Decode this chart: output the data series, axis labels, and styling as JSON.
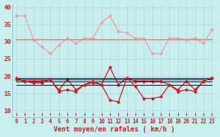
{
  "title": "",
  "xlabel": "Vent moyen/en rafales ( km/h )",
  "bg_color": "#c8eef0",
  "grid_color": "#b0dde0",
  "ylim": [
    8,
    41
  ],
  "xlim": [
    -0.5,
    23.5
  ],
  "yticks": [
    10,
    15,
    20,
    25,
    30,
    35,
    40
  ],
  "xticks": [
    0,
    1,
    2,
    3,
    4,
    5,
    6,
    7,
    8,
    9,
    10,
    11,
    12,
    13,
    14,
    15,
    16,
    17,
    18,
    19,
    20,
    21,
    22,
    23
  ],
  "series": [
    {
      "y": [
        37.5,
        37.5,
        30.5,
        28.5,
        26.5,
        29.0,
        31.0,
        29.5,
        31.0,
        31.0,
        35.5,
        37.5,
        33.0,
        32.5,
        31.0,
        31.0,
        26.5,
        26.5,
        31.0,
        31.0,
        30.5,
        31.0,
        29.5,
        33.5
      ],
      "color": "#f0a0a0",
      "lw": 1.0,
      "marker": "D",
      "ms": 2.5
    },
    {
      "y": [
        30.5,
        30.5,
        30.5,
        30.5,
        30.5,
        30.5,
        30.5,
        30.5,
        30.5,
        30.5,
        30.5,
        30.5,
        30.5,
        30.5,
        30.5,
        30.5,
        30.5,
        30.5,
        30.5,
        30.5,
        30.5,
        30.5,
        30.5,
        30.5
      ],
      "color": "#e88080",
      "lw": 1.2,
      "marker": null,
      "ms": 0
    },
    {
      "y": [
        19.0,
        18.5,
        18.5,
        18.5,
        19.0,
        16.0,
        19.0,
        16.0,
        17.5,
        18.0,
        17.5,
        22.5,
        17.5,
        19.5,
        18.5,
        18.5,
        18.5,
        18.5,
        17.5,
        16.0,
        18.5,
        16.0,
        18.5,
        19.5
      ],
      "color": "#cc2020",
      "lw": 1.0,
      "marker": "D",
      "ms": 2.5
    },
    {
      "y": [
        19.5,
        19.5,
        19.5,
        19.5,
        19.5,
        19.5,
        19.5,
        19.5,
        19.5,
        19.5,
        19.5,
        19.5,
        19.5,
        19.5,
        19.5,
        19.5,
        19.5,
        19.5,
        19.5,
        19.5,
        19.5,
        19.5,
        19.5,
        19.5
      ],
      "color": "#101030",
      "lw": 0.8,
      "marker": null,
      "ms": 0
    },
    {
      "y": [
        19.0,
        19.0,
        19.0,
        19.0,
        19.0,
        19.0,
        19.0,
        19.0,
        19.0,
        19.0,
        19.0,
        19.0,
        19.0,
        19.0,
        19.0,
        19.0,
        19.0,
        19.0,
        19.0,
        19.0,
        19.0,
        19.0,
        19.0,
        19.0
      ],
      "color": "#101030",
      "lw": 0.8,
      "marker": null,
      "ms": 0
    },
    {
      "y": [
        18.5,
        18.5,
        18.5,
        18.5,
        18.5,
        18.5,
        18.5,
        18.5,
        18.5,
        18.5,
        18.5,
        18.5,
        18.5,
        18.5,
        18.5,
        18.5,
        18.5,
        18.5,
        18.5,
        18.5,
        18.5,
        18.5,
        18.5,
        18.5
      ],
      "color": "#101030",
      "lw": 0.8,
      "marker": null,
      "ms": 0
    },
    {
      "y": [
        17.5,
        17.5,
        17.5,
        17.5,
        17.5,
        17.5,
        17.5,
        17.5,
        17.5,
        17.5,
        17.5,
        17.5,
        17.5,
        17.5,
        17.5,
        17.5,
        17.5,
        17.5,
        17.5,
        17.5,
        17.5,
        17.5,
        17.5,
        17.5
      ],
      "color": "#101030",
      "lw": 0.8,
      "marker": null,
      "ms": 0
    },
    {
      "y": [
        19.5,
        18.5,
        18.0,
        18.0,
        19.0,
        15.5,
        16.0,
        15.5,
        17.5,
        18.5,
        17.5,
        13.0,
        12.5,
        19.5,
        17.0,
        13.5,
        13.5,
        14.0,
        17.5,
        15.5,
        16.0,
        15.5,
        18.5,
        19.5
      ],
      "color": "#cc2020",
      "lw": 1.0,
      "marker": "D",
      "ms": 2.5
    }
  ],
  "tick_label_color": "#cc2020",
  "tick_label_fontsize": 5.5,
  "xlabel_fontsize": 7,
  "xlabel_color": "#cc2020",
  "ytick_color": "#cc2020",
  "ytick_fontsize": 6.5
}
